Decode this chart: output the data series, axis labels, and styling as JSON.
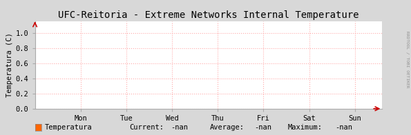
{
  "title": "UFC-Reitoria - Extreme Networks Internal Temperature",
  "ylabel": "Temperatura (C)",
  "background_color": "#d8d8d8",
  "plot_bg_color": "#ffffff",
  "grid_color": "#ffaaaa",
  "grid_linestyle": ":",
  "x_labels": [
    "Mon",
    "Tue",
    "Wed",
    "Thu",
    "Fri",
    "Sat",
    "Sun"
  ],
  "x_ticks": [
    1,
    2,
    3,
    4,
    5,
    6,
    7
  ],
  "x_lim": [
    0.0,
    7.6
  ],
  "y_lim": [
    0.0,
    1.15
  ],
  "y_ticks": [
    0.0,
    0.2,
    0.4,
    0.6,
    0.8,
    1.0
  ],
  "arrow_color": "#cc0000",
  "title_fontsize": 10,
  "axis_label_fontsize": 7.5,
  "tick_fontsize": 7.5,
  "legend_label": "Temperatura",
  "legend_color": "#ff6600",
  "legend_current": "Current:",
  "legend_current_val": "-nan",
  "legend_average": "Average:",
  "legend_average_val": "-nan",
  "legend_maximum": "Maximum:",
  "legend_maximum_val": "-nan",
  "watermark": "RRDTOOL / TOBI OETIKER",
  "font_family": "monospace"
}
